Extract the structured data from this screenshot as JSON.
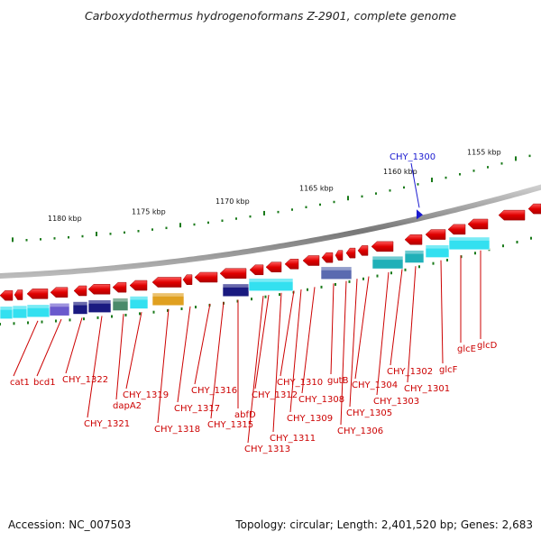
{
  "title": "Carboxydothermus hydrogenoformans Z-2901, complete genome",
  "scale_labels": [
    "1180 kbp",
    "1175 kbp",
    "1170 kbp",
    "1165 kbp",
    "1160 kbp",
    "1155 kbp"
  ],
  "highlight_gene": "CHY_1300",
  "gene_labels": [
    "cat1",
    "bcd1",
    "CHY_1322",
    "CHY_1321",
    "dapA2",
    "CHY_1319",
    "CHY_1318",
    "CHY_1317",
    "CHY_1316",
    "CHY_1315",
    "abfD",
    "CHY_1313",
    "CHY_1312",
    "CHY_1311",
    "CHY_1310",
    "CHY_1309",
    "CHY_1308",
    "gutB",
    "CHY_1306",
    "CHY_1305",
    "CHY_1304",
    "CHY_1303",
    "CHY_1302",
    "CHY_1301",
    "glcF",
    "glcE",
    "glcD"
  ],
  "footer": {
    "accession": "Accession: NC_007503",
    "info": "Topology: circular; Length: 2,401,520 bp; Genes: 2,683"
  },
  "colors": {
    "gene_arrow": "#ee0000",
    "label": "#cc0000",
    "highlight": "#1a1ad0",
    "backbone": "#888888",
    "tick": "#1a7a1a",
    "cog_cyan": "#33e0f0",
    "cog_teal": "#20b0b8",
    "cog_navy": "#1a1a80",
    "cog_purple": "#6a5acd"
  }
}
